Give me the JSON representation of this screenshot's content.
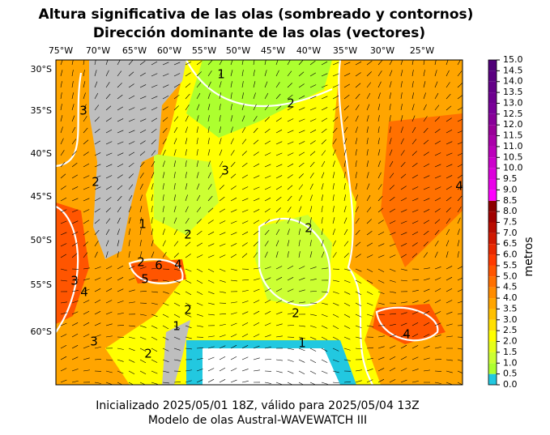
{
  "header": {
    "title_line1": "Altura significativa de las olas (sombreado y contornos)",
    "title_line2": "Dirección dominante de las olas (vectores)"
  },
  "map": {
    "lon_labels": [
      "75°W",
      "70°W",
      "65°W",
      "60°W",
      "55°W",
      "50°W",
      "45°W",
      "40°W",
      "35°W",
      "30°W",
      "25°W"
    ],
    "lat_labels": [
      "30°S",
      "35°S",
      "40°S",
      "45°S",
      "50°S",
      "55°S",
      "60°S"
    ],
    "contour_labels": [
      "1",
      "2",
      "3",
      "3",
      "2",
      "1",
      "2",
      "2",
      "4",
      "2",
      "6",
      "4",
      "5",
      "3",
      "4",
      "2",
      "2",
      "1",
      "4",
      "3",
      "1",
      "2"
    ]
  },
  "colorbar": {
    "label": "metros",
    "ticks": [
      {
        "value": 0,
        "label": "0.0"
      },
      {
        "value": 0.5,
        "label": "0.5"
      },
      {
        "value": 1,
        "label": "1.0"
      },
      {
        "value": 1.5,
        "label": "1.5"
      },
      {
        "value": 2,
        "label": "2.0"
      },
      {
        "value": 2.5,
        "label": "2.5"
      },
      {
        "value": 3,
        "label": "3.0"
      },
      {
        "value": 3.5,
        "label": "3.5"
      },
      {
        "value": 4,
        "label": "4.0"
      },
      {
        "value": 4.5,
        "label": "4.5"
      },
      {
        "value": 5,
        "label": "5.0"
      },
      {
        "value": 5.5,
        "label": "5.5"
      },
      {
        "value": 6,
        "label": "6.0"
      },
      {
        "value": 6.5,
        "label": "6.5"
      },
      {
        "value": 7,
        "label": "7.0"
      },
      {
        "value": 7.5,
        "label": "7.5"
      },
      {
        "value": 8,
        "label": "8.0"
      },
      {
        "value": 8.5,
        "label": "8.5"
      },
      {
        "value": 9,
        "label": "9.0"
      },
      {
        "value": 9.5,
        "label": "9.5"
      },
      {
        "value": 10,
        "label": "10.0"
      },
      {
        "value": 10.5,
        "label": "10.5"
      },
      {
        "value": 11,
        "label": "11.0"
      },
      {
        "value": 11.5,
        "label": "11.5"
      },
      {
        "value": 12,
        "label": "12.0"
      },
      {
        "value": 12.5,
        "label": "12.5"
      },
      {
        "value": 13,
        "label": "13.0"
      },
      {
        "value": 13.5,
        "label": "13.5"
      },
      {
        "value": 14,
        "label": "14.0"
      },
      {
        "value": 14.5,
        "label": "14.5"
      },
      {
        "value": 15,
        "label": "15.0"
      }
    ],
    "colors": [
      "#22c8e0",
      "#adff2f",
      "#ccff33",
      "#e6ff1a",
      "#ffff00",
      "#ffe000",
      "#ffc000",
      "#ffa500",
      "#ff8c00",
      "#ff7000",
      "#ff5500",
      "#ff3a00",
      "#e82800",
      "#d01800",
      "#b80c00",
      "#a00000",
      "#8b0000",
      "#ff00ff",
      "#ea00ea",
      "#dc00dc",
      "#cc00cc",
      "#bb00bb",
      "#aa00aa",
      "#990099",
      "#880099",
      "#7a0099",
      "#6e0090",
      "#640088",
      "#5a0080",
      "#500078"
    ]
  },
  "footer": {
    "line1": "Inicializado 2025/05/01 18Z, válido para 2025/05/04 13Z",
    "line2": "Modelo de olas Austral-WAVEWATCH III"
  }
}
